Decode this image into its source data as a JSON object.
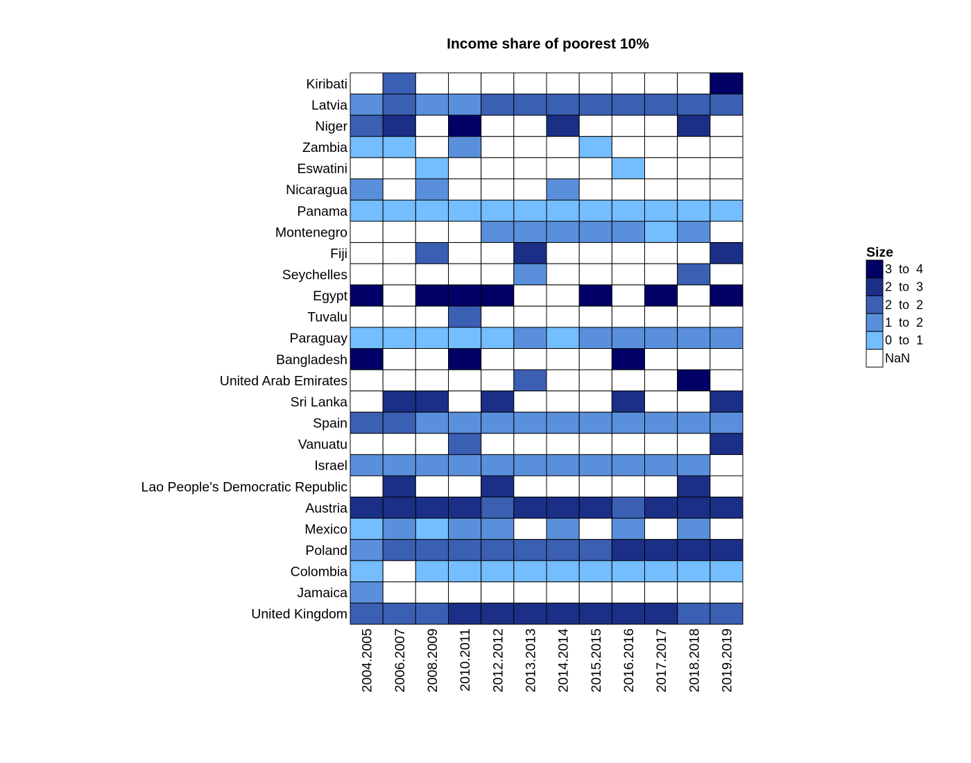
{
  "chart_data": {
    "type": "heatmap",
    "title": "Income share of poorest 10%",
    "x": [
      "2004.2005",
      "2006.2007",
      "2008.2009",
      "2010.2011",
      "2012.2012",
      "2013.2013",
      "2014.2014",
      "2015.2015",
      "2016.2016",
      "2017.2017",
      "2018.2018",
      "2019.2019"
    ],
    "y": [
      "Kiribati",
      "Latvia",
      "Niger",
      "Zambia",
      "Eswatini",
      "Nicaragua",
      "Panama",
      "Montenegro",
      "Fiji",
      "Seychelles",
      "Egypt",
      "Tuvalu",
      "Paraguay",
      "Bangladesh",
      "United Arab Emirates",
      "Sri Lanka",
      "Spain",
      "Vanuatu",
      "Israel",
      "Lao People's Democratic Republic",
      "Austria",
      "Mexico",
      "Poland",
      "Colombia",
      "Jamaica",
      "United Kingdom"
    ],
    "levels": [
      [
        null,
        2,
        null,
        null,
        null,
        null,
        null,
        null,
        null,
        null,
        null,
        4
      ],
      [
        1,
        2,
        1,
        1,
        2,
        2,
        2,
        2,
        2,
        2,
        2,
        2
      ],
      [
        2,
        3,
        null,
        4,
        null,
        null,
        3,
        null,
        null,
        null,
        3,
        null
      ],
      [
        0,
        0,
        null,
        1,
        null,
        null,
        null,
        0,
        null,
        null,
        null,
        null
      ],
      [
        null,
        null,
        0,
        null,
        null,
        null,
        null,
        null,
        0,
        null,
        null,
        null
      ],
      [
        1,
        null,
        1,
        null,
        null,
        null,
        1,
        null,
        null,
        null,
        null,
        null
      ],
      [
        0,
        0,
        0,
        0,
        0,
        0,
        0,
        0,
        0,
        0,
        0,
        0
      ],
      [
        null,
        null,
        null,
        null,
        1,
        1,
        1,
        1,
        1,
        0,
        1,
        null
      ],
      [
        null,
        null,
        2,
        null,
        null,
        3,
        null,
        null,
        null,
        null,
        null,
        3
      ],
      [
        null,
        null,
        null,
        null,
        null,
        1,
        null,
        null,
        null,
        null,
        2,
        null
      ],
      [
        4,
        null,
        4,
        4,
        4,
        null,
        null,
        4,
        null,
        4,
        null,
        4
      ],
      [
        null,
        null,
        null,
        2,
        null,
        null,
        null,
        null,
        null,
        null,
        null,
        null
      ],
      [
        0,
        0,
        0,
        0,
        0,
        1,
        0,
        1,
        1,
        1,
        1,
        1
      ],
      [
        4,
        null,
        null,
        4,
        null,
        null,
        null,
        null,
        4,
        null,
        null,
        null
      ],
      [
        null,
        null,
        null,
        null,
        null,
        2,
        null,
        null,
        null,
        null,
        4,
        null
      ],
      [
        null,
        3,
        3,
        null,
        3,
        null,
        null,
        null,
        3,
        null,
        null,
        3
      ],
      [
        2,
        2,
        1,
        1,
        1,
        1,
        1,
        1,
        1,
        1,
        1,
        1
      ],
      [
        null,
        null,
        null,
        2,
        null,
        null,
        null,
        null,
        null,
        null,
        null,
        3
      ],
      [
        1,
        1,
        1,
        1,
        1,
        1,
        1,
        1,
        1,
        1,
        1,
        null
      ],
      [
        null,
        3,
        null,
        null,
        3,
        null,
        null,
        null,
        null,
        null,
        3,
        null
      ],
      [
        3,
        3,
        3,
        3,
        2,
        3,
        3,
        3,
        2,
        3,
        3,
        3
      ],
      [
        0,
        1,
        0,
        1,
        1,
        null,
        1,
        null,
        1,
        null,
        1,
        null
      ],
      [
        1,
        2,
        2,
        2,
        2,
        2,
        2,
        2,
        3,
        3,
        3,
        3
      ],
      [
        0,
        null,
        0,
        0,
        0,
        0,
        0,
        0,
        0,
        0,
        0,
        0
      ],
      [
        1,
        null,
        null,
        null,
        null,
        null,
        null,
        null,
        null,
        null,
        null,
        null
      ],
      [
        2,
        2,
        2,
        3,
        3,
        3,
        3,
        3,
        3,
        3,
        2,
        2
      ]
    ],
    "legend": {
      "title": "Size",
      "placement": "right",
      "entries": [
        {
          "label": "3 to 4",
          "color": "#000066",
          "level": 4
        },
        {
          "label": "2 to 3",
          "color": "#1b2f87",
          "level": 3
        },
        {
          "label": "2 to 2",
          "color": "#3a5fb3",
          "level": 2
        },
        {
          "label": "1 to 2",
          "color": "#5a8fdb",
          "level": 1
        },
        {
          "label": "0 to 1",
          "color": "#74bdff",
          "level": 0
        },
        {
          "label": "NaN",
          "color": "#ffffff",
          "level": null
        }
      ]
    },
    "grid": true
  }
}
